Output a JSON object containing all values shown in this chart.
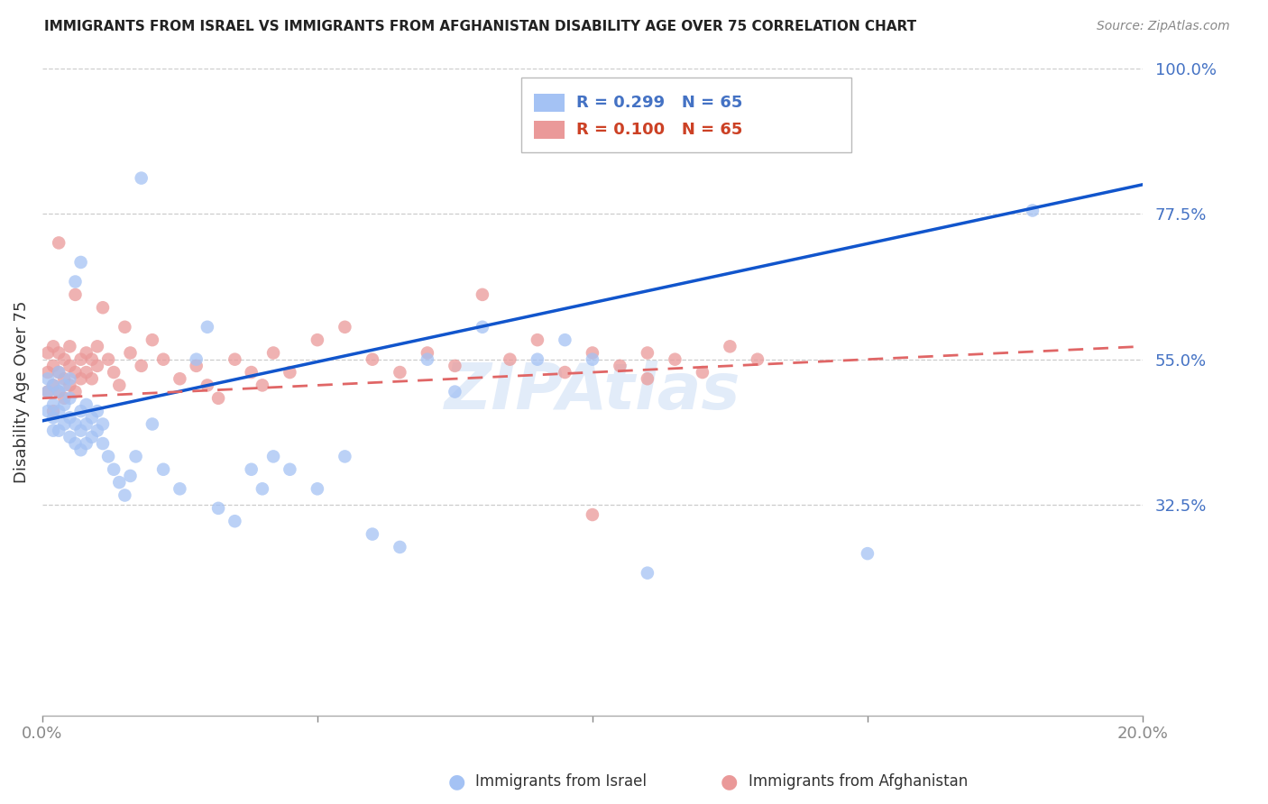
{
  "title": "IMMIGRANTS FROM ISRAEL VS IMMIGRANTS FROM AFGHANISTAN DISABILITY AGE OVER 75 CORRELATION CHART",
  "source": "Source: ZipAtlas.com",
  "ylabel": "Disability Age Over 75",
  "xlim": [
    0.0,
    0.2
  ],
  "ylim": [
    0.0,
    1.0
  ],
  "xtick_vals": [
    0.0,
    0.05,
    0.1,
    0.15,
    0.2
  ],
  "xtick_labels": [
    "0.0%",
    "",
    "",
    "",
    "20.0%"
  ],
  "ytick_positions": [
    1.0,
    0.775,
    0.55,
    0.325
  ],
  "ytick_labels": [
    "100.0%",
    "77.5%",
    "55.0%",
    "32.5%"
  ],
  "israel_R": 0.299,
  "israel_N": 65,
  "afghan_R": 0.1,
  "afghan_N": 65,
  "israel_color": "#a4c2f4",
  "afghan_color": "#ea9999",
  "israel_line_color": "#1155cc",
  "afghan_line_color": "#e06666",
  "israel_x": [
    0.001,
    0.001,
    0.001,
    0.002,
    0.002,
    0.002,
    0.002,
    0.003,
    0.003,
    0.003,
    0.003,
    0.004,
    0.004,
    0.004,
    0.005,
    0.005,
    0.005,
    0.005,
    0.006,
    0.006,
    0.006,
    0.007,
    0.007,
    0.007,
    0.007,
    0.008,
    0.008,
    0.008,
    0.009,
    0.009,
    0.01,
    0.01,
    0.011,
    0.011,
    0.012,
    0.013,
    0.014,
    0.015,
    0.016,
    0.017,
    0.018,
    0.02,
    0.022,
    0.025,
    0.028,
    0.03,
    0.032,
    0.035,
    0.038,
    0.04,
    0.042,
    0.045,
    0.05,
    0.055,
    0.06,
    0.065,
    0.07,
    0.075,
    0.08,
    0.09,
    0.095,
    0.1,
    0.11,
    0.15,
    0.18
  ],
  "israel_y": [
    0.47,
    0.5,
    0.52,
    0.44,
    0.46,
    0.48,
    0.51,
    0.44,
    0.47,
    0.5,
    0.53,
    0.45,
    0.48,
    0.51,
    0.43,
    0.46,
    0.49,
    0.52,
    0.42,
    0.45,
    0.67,
    0.41,
    0.44,
    0.47,
    0.7,
    0.42,
    0.45,
    0.48,
    0.43,
    0.46,
    0.44,
    0.47,
    0.42,
    0.45,
    0.4,
    0.38,
    0.36,
    0.34,
    0.37,
    0.4,
    0.83,
    0.45,
    0.38,
    0.35,
    0.55,
    0.6,
    0.32,
    0.3,
    0.38,
    0.35,
    0.4,
    0.38,
    0.35,
    0.4,
    0.28,
    0.26,
    0.55,
    0.5,
    0.6,
    0.55,
    0.58,
    0.55,
    0.22,
    0.25,
    0.78
  ],
  "afghan_x": [
    0.001,
    0.001,
    0.001,
    0.002,
    0.002,
    0.002,
    0.003,
    0.003,
    0.003,
    0.004,
    0.004,
    0.005,
    0.005,
    0.005,
    0.006,
    0.006,
    0.006,
    0.007,
    0.007,
    0.008,
    0.008,
    0.009,
    0.009,
    0.01,
    0.01,
    0.011,
    0.012,
    0.013,
    0.014,
    0.015,
    0.016,
    0.018,
    0.02,
    0.022,
    0.025,
    0.028,
    0.03,
    0.032,
    0.035,
    0.038,
    0.04,
    0.042,
    0.045,
    0.05,
    0.055,
    0.06,
    0.065,
    0.07,
    0.075,
    0.08,
    0.085,
    0.09,
    0.095,
    0.1,
    0.105,
    0.11,
    0.115,
    0.12,
    0.125,
    0.13,
    0.002,
    0.003,
    0.004,
    0.1,
    0.11
  ],
  "afghan_y": [
    0.5,
    0.53,
    0.56,
    0.51,
    0.54,
    0.57,
    0.5,
    0.53,
    0.56,
    0.52,
    0.55,
    0.51,
    0.54,
    0.57,
    0.5,
    0.53,
    0.65,
    0.52,
    0.55,
    0.53,
    0.56,
    0.52,
    0.55,
    0.54,
    0.57,
    0.63,
    0.55,
    0.53,
    0.51,
    0.6,
    0.56,
    0.54,
    0.58,
    0.55,
    0.52,
    0.54,
    0.51,
    0.49,
    0.55,
    0.53,
    0.51,
    0.56,
    0.53,
    0.58,
    0.6,
    0.55,
    0.53,
    0.56,
    0.54,
    0.65,
    0.55,
    0.58,
    0.53,
    0.56,
    0.54,
    0.52,
    0.55,
    0.53,
    0.57,
    0.55,
    0.47,
    0.73,
    0.49,
    0.31,
    0.56
  ]
}
